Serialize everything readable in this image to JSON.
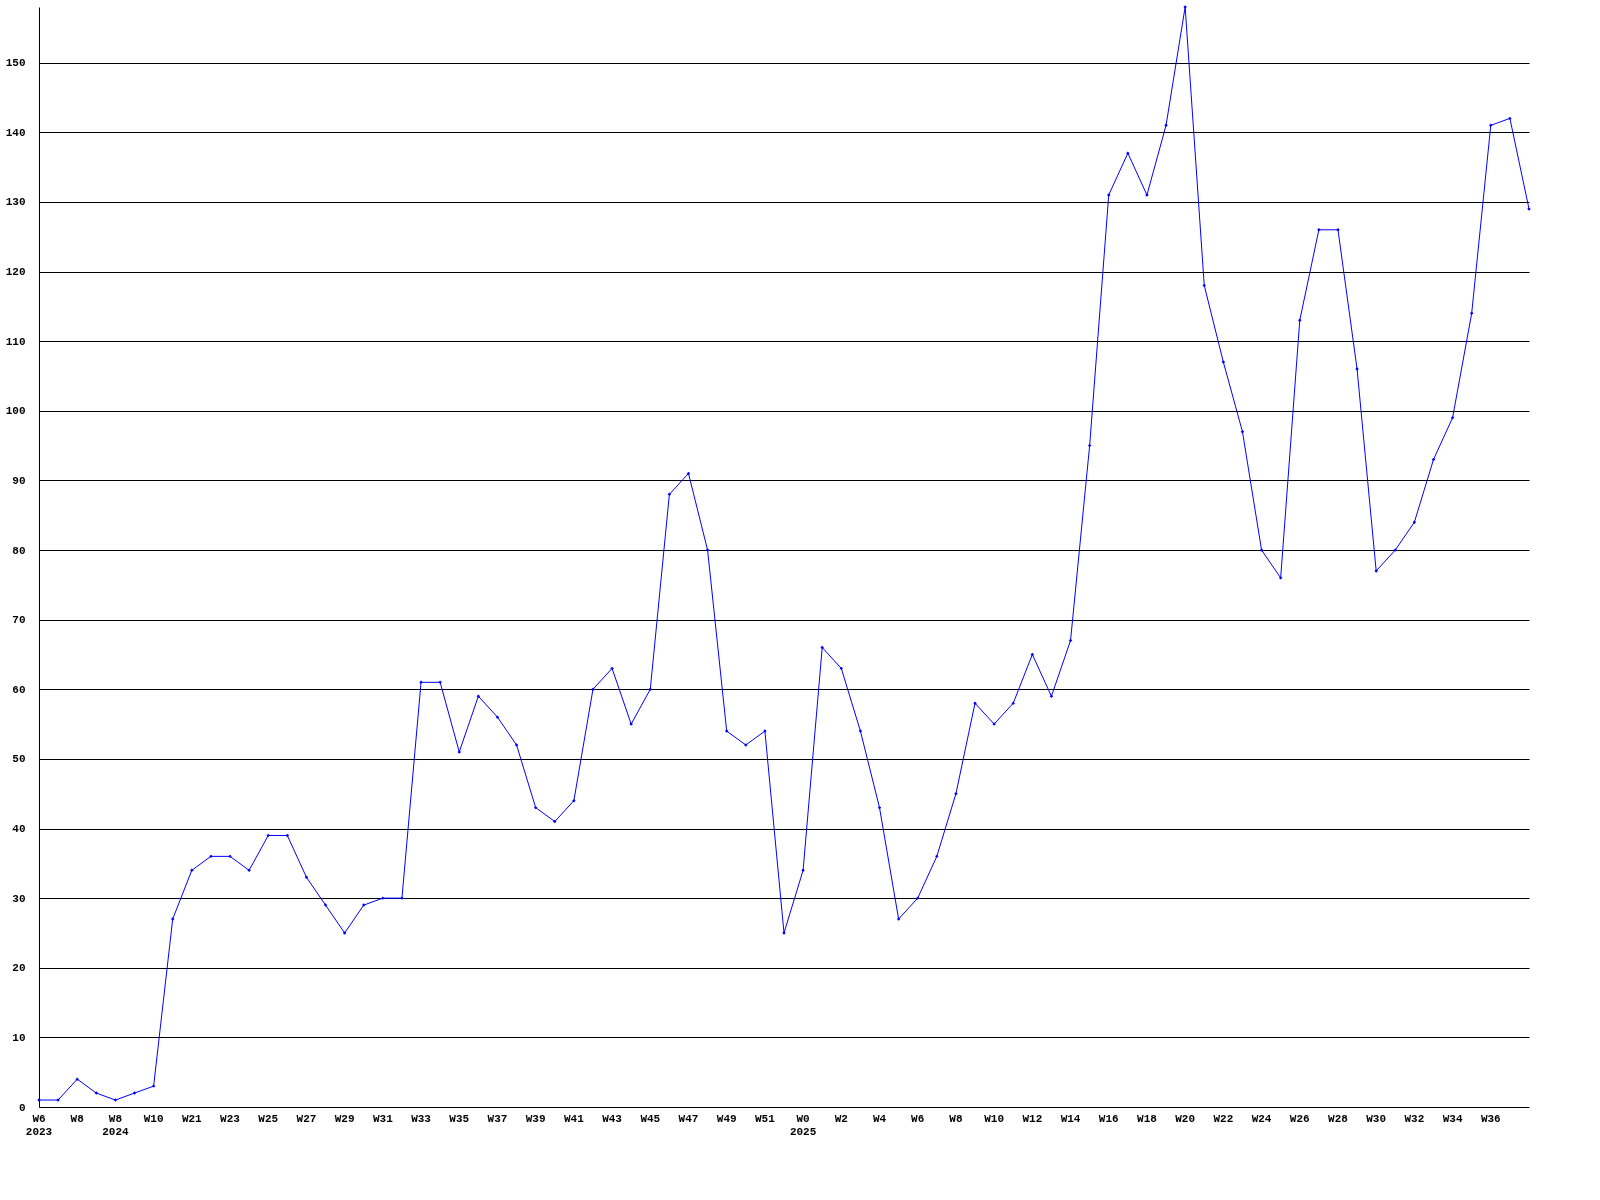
{
  "chart_data": {
    "type": "line",
    "categories": [
      "W6\n2023",
      null,
      "W8",
      null,
      "W8\n2024",
      null,
      "W10",
      null,
      "W21",
      null,
      "W23",
      null,
      "W25",
      null,
      "W27",
      null,
      "W29",
      null,
      "W31",
      null,
      "W33",
      null,
      "W35",
      null,
      "W37",
      null,
      "W39",
      null,
      "W41",
      null,
      "W43",
      null,
      "W45",
      null,
      "W47",
      null,
      "W49",
      null,
      "W51",
      null,
      "W0\n2025",
      null,
      "W2",
      null,
      "W4",
      null,
      "W6",
      null,
      "W8",
      null,
      "W10",
      null,
      "W12",
      null,
      "W14",
      null,
      "W16",
      null,
      "W18",
      null,
      "W20",
      null,
      "W22",
      null,
      "W24",
      null,
      "W26",
      null,
      "W28",
      null,
      "W30",
      null,
      "W32",
      null,
      "W34",
      null,
      "W36",
      null,
      null
    ],
    "series": [
      {
        "color": "#0000ff",
        "values": [
          1,
          1,
          4,
          2,
          1,
          2,
          3,
          27,
          34,
          36,
          36,
          34,
          39,
          39,
          33,
          29,
          25,
          29,
          30,
          30,
          61,
          61,
          51,
          59,
          56,
          52,
          43,
          41,
          44,
          60,
          63,
          55,
          60,
          88,
          91,
          80,
          54,
          52,
          54,
          25,
          34,
          66,
          63,
          54,
          43,
          27,
          30,
          36,
          45,
          58,
          55,
          58,
          65,
          59,
          67,
          95,
          131,
          137,
          131,
          141,
          158,
          118,
          107,
          97,
          80,
          76,
          113,
          126,
          126,
          106,
          77,
          80,
          84,
          93,
          99,
          114,
          141,
          142,
          129
        ]
      }
    ],
    "ylim": [
      0,
      158
    ],
    "yticks": [
      0,
      10,
      20,
      30,
      40,
      50,
      60,
      70,
      80,
      90,
      100,
      110,
      120,
      130,
      140,
      150
    ],
    "grid": "y",
    "marker": "diamond",
    "line_style": "solid"
  }
}
